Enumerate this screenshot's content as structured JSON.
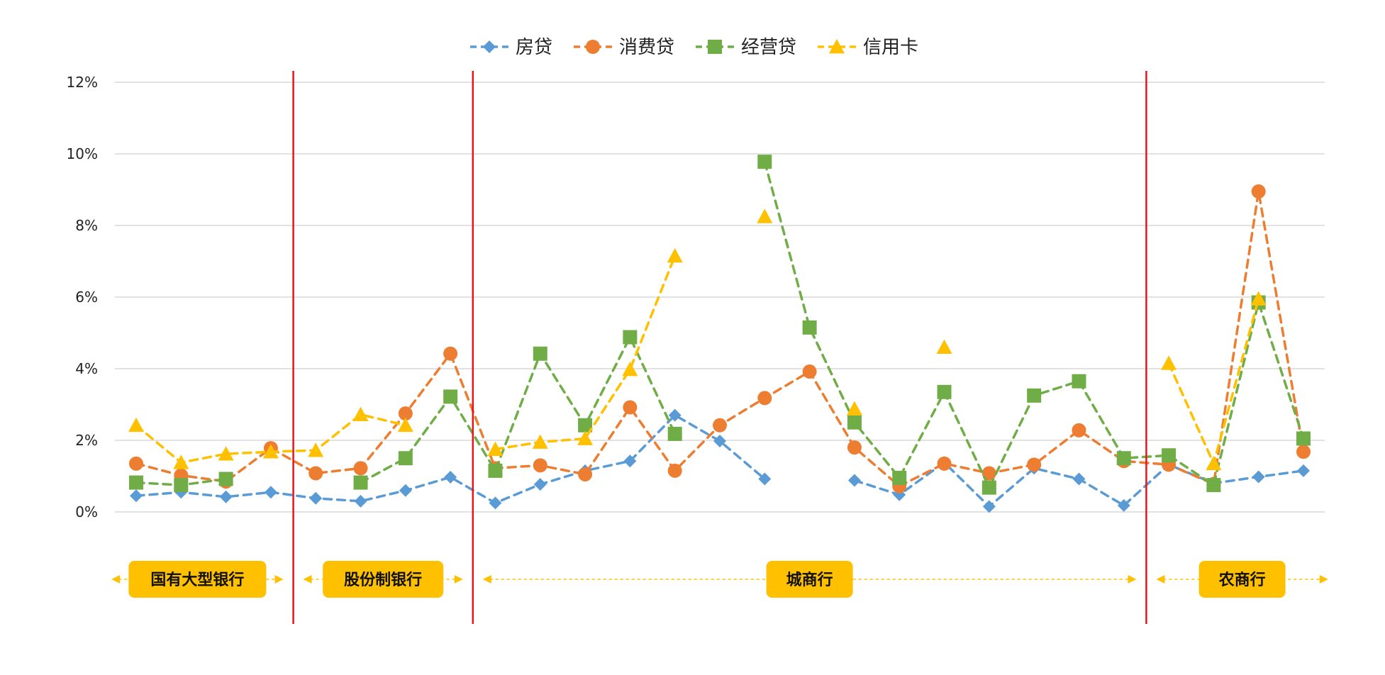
{
  "chart_data": {
    "type": "line",
    "title": "",
    "xlabel": "",
    "ylabel": "",
    "ylim": [
      0,
      0.12
    ],
    "y_ticks": [
      "0%",
      "2%",
      "4%",
      "6%",
      "8%",
      "10%",
      "12%"
    ],
    "grid": "horizontal",
    "legend_position": "top-center",
    "x": [
      1,
      2,
      3,
      4,
      5,
      6,
      7,
      8,
      9,
      10,
      11,
      12,
      13,
      14,
      15,
      16,
      17,
      18,
      19,
      20,
      21,
      22,
      23,
      24,
      25,
      26,
      27
    ],
    "series": [
      {
        "name": "房贷",
        "color": "#5B9BD5",
        "marker": "diamond",
        "values": [
          0.0045,
          0.0055,
          0.0042,
          0.0055,
          0.0038,
          0.003,
          0.006,
          0.0097,
          0.0025,
          0.0077,
          0.0115,
          0.0142,
          0.027,
          0.0198,
          0.0092,
          null,
          0.0088,
          0.0048,
          0.0138,
          0.0015,
          0.0122,
          0.0092,
          0.0018,
          0.0132,
          0.008,
          0.0098,
          0.0115
        ]
      },
      {
        "name": "消费贷",
        "color": "#ED7D31",
        "marker": "circle",
        "values": [
          0.0135,
          0.0102,
          0.0085,
          0.0178,
          0.0108,
          0.0122,
          0.0275,
          0.0442,
          0.0122,
          0.013,
          0.0105,
          0.0292,
          0.0115,
          0.0242,
          0.0318,
          0.0392,
          0.018,
          0.0072,
          0.0135,
          0.0108,
          0.0132,
          0.0228,
          0.0142,
          0.0132,
          0.0078,
          0.0895,
          0.0168
        ]
      },
      {
        "name": "经营贷",
        "color": "#70AD47",
        "marker": "square",
        "values": [
          0.0082,
          0.0075,
          0.0092,
          null,
          null,
          0.0082,
          0.015,
          0.0322,
          0.0115,
          0.0442,
          0.0242,
          0.0488,
          0.0218,
          null,
          0.0978,
          0.0515,
          0.025,
          0.0095,
          0.0335,
          0.0068,
          0.0325,
          0.0365,
          0.015,
          0.0158,
          0.0075,
          0.0585,
          0.0205
        ]
      },
      {
        "name": "信用卡",
        "color": "#FFC000",
        "marker": "triangle",
        "values": [
          0.0242,
          0.0138,
          0.0162,
          0.0168,
          0.0172,
          0.0272,
          0.0242,
          null,
          0.0175,
          0.0195,
          0.0205,
          0.0398,
          0.0715,
          null,
          0.0825,
          null,
          0.0288,
          null,
          0.046,
          null,
          null,
          null,
          null,
          0.0415,
          0.0135,
          0.0595,
          null
        ]
      }
    ],
    "groups": [
      {
        "label": "国有大型银行",
        "from": 1,
        "to": 4
      },
      {
        "label": "股份制银行",
        "from": 5,
        "to": 8
      },
      {
        "label": "城商行",
        "from": 9,
        "to": 23
      },
      {
        "label": "农商行",
        "from": 24,
        "to": 27
      }
    ],
    "separators_after": [
      4,
      8,
      23
    ],
    "colors": {
      "separator": "#E8141C",
      "group_badge": "#FFC000",
      "grid": "#D9D9D9"
    }
  }
}
